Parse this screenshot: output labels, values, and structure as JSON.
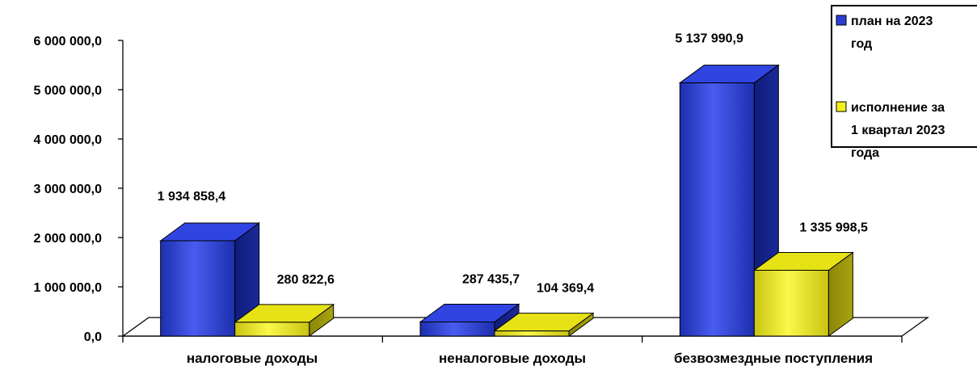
{
  "chart_data": {
    "type": "bar",
    "categories": [
      "налоговые доходы",
      "неналоговые доходы",
      "безвозмездные поступления"
    ],
    "series": [
      {
        "name": "план на 2023 год",
        "values": [
          1934858.4,
          287435.7,
          5137990.9
        ],
        "labels": [
          "1 934 858,4",
          "287 435,7",
          "5 137 990,9"
        ],
        "color": "#2a3fd6"
      },
      {
        "name": "исполнение за 1 квартал 2023 года",
        "values": [
          280822.6,
          104369.4,
          1335998.5
        ],
        "labels": [
          "280 822,6",
          "104 369,4",
          "1 335 998,5"
        ],
        "color": "#f2ef1a"
      }
    ],
    "y_ticks": [
      "0,0",
      "1 000 000,0",
      "2 000 000,0",
      "3 000 000,0",
      "4 000 000,0",
      "5 000 000,0",
      "6 000 000,0"
    ],
    "legend": {
      "lines": [
        [
          "план на 2023",
          "год"
        ],
        [
          "исполнение за",
          "1 квартал 2023",
          "года"
        ]
      ],
      "placement": "top-right"
    },
    "ylim": [
      0,
      6000000
    ],
    "style": "3d-clustered-bar",
    "grid": false
  }
}
